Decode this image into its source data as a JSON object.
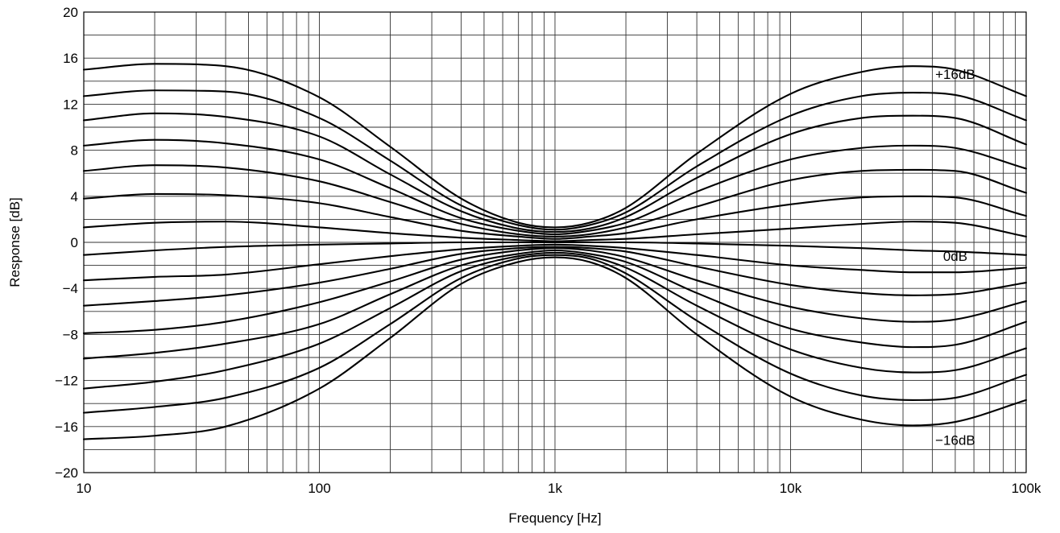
{
  "chart_data": {
    "type": "line",
    "title": "",
    "xlabel": "Frequency [Hz]",
    "ylabel": "Response [dB]",
    "xscale": "log",
    "xlim": [
      10,
      100000
    ],
    "ylim": [
      -20,
      20
    ],
    "grid": true,
    "legend": "none",
    "x_ticks": [
      {
        "value": 10,
        "label": "10"
      },
      {
        "value": 100,
        "label": "100"
      },
      {
        "value": 1000,
        "label": "1k"
      },
      {
        "value": 10000,
        "label": "10k"
      },
      {
        "value": 100000,
        "label": "100k"
      }
    ],
    "y_ticks": [
      {
        "value": 20,
        "label": "20"
      },
      {
        "value": 16,
        "label": "16"
      },
      {
        "value": 12,
        "label": "12"
      },
      {
        "value": 8,
        "label": "8"
      },
      {
        "value": 4,
        "label": "4"
      },
      {
        "value": 0,
        "label": "0"
      },
      {
        "value": -4,
        "label": "−4"
      },
      {
        "value": -8,
        "label": "−8"
      },
      {
        "value": -12,
        "label": "−12"
      },
      {
        "value": -16,
        "label": "−16"
      },
      {
        "value": -20,
        "label": "−20"
      }
    ],
    "annotations": [
      {
        "text": "+16dB",
        "x": 50000,
        "y": 14.2
      },
      {
        "text": "0dB",
        "x": 50000,
        "y": -1.6
      },
      {
        "text": "−16dB",
        "x": 50000,
        "y": -17.6
      }
    ],
    "x": [
      10,
      20,
      40,
      100,
      200,
      400,
      700,
      1000,
      1400,
      2000,
      4000,
      10000,
      20000,
      33000,
      50000,
      100000
    ],
    "series": [
      {
        "values": [
          15.0,
          15.5,
          15.3,
          12.6,
          8.3,
          3.8,
          1.7,
          1.3,
          1.7,
          3.0,
          7.7,
          12.9,
          14.8,
          15.3,
          15.0,
          12.7
        ]
      },
      {
        "values": [
          12.7,
          13.2,
          13.1,
          10.8,
          7.1,
          3.2,
          1.5,
          1.1,
          1.5,
          2.6,
          6.6,
          11.0,
          12.7,
          13.0,
          12.8,
          10.6
        ]
      },
      {
        "values": [
          10.6,
          11.2,
          10.9,
          9.2,
          5.9,
          2.7,
          1.2,
          0.9,
          1.2,
          2.2,
          5.6,
          9.4,
          10.8,
          11.0,
          10.8,
          8.5
        ]
      },
      {
        "values": [
          8.4,
          8.9,
          8.6,
          7.2,
          4.7,
          2.1,
          1.0,
          0.7,
          1.0,
          1.7,
          4.4,
          7.2,
          8.2,
          8.4,
          8.2,
          6.4
        ]
      },
      {
        "values": [
          6.2,
          6.7,
          6.5,
          5.3,
          3.5,
          1.6,
          0.7,
          0.5,
          0.7,
          1.3,
          3.1,
          5.4,
          6.2,
          6.3,
          6.2,
          4.3
        ]
      },
      {
        "values": [
          3.8,
          4.2,
          4.1,
          3.4,
          2.2,
          1.0,
          0.5,
          0.3,
          0.5,
          0.8,
          2.0,
          3.3,
          3.9,
          4.0,
          3.9,
          2.3
        ]
      },
      {
        "values": [
          1.3,
          1.7,
          1.8,
          1.3,
          0.8,
          0.4,
          0.2,
          0.1,
          0.2,
          0.3,
          0.7,
          1.2,
          1.6,
          1.8,
          1.7,
          0.5
        ]
      },
      {
        "values": [
          -1.1,
          -0.7,
          -0.4,
          -0.2,
          -0.1,
          0.0,
          0.0,
          0.0,
          0.0,
          0.0,
          -0.1,
          -0.3,
          -0.5,
          -0.7,
          -0.8,
          -1.1
        ]
      },
      {
        "values": [
          -3.3,
          -3.0,
          -2.8,
          -1.9,
          -1.2,
          -0.6,
          -0.3,
          -0.2,
          -0.3,
          -0.5,
          -1.1,
          -2.0,
          -2.4,
          -2.6,
          -2.6,
          -2.2
        ]
      },
      {
        "values": [
          -5.5,
          -5.1,
          -4.6,
          -3.5,
          -2.3,
          -1.0,
          -0.5,
          -0.4,
          -0.5,
          -0.8,
          -2.1,
          -3.7,
          -4.4,
          -4.6,
          -4.5,
          -3.5
        ]
      },
      {
        "values": [
          -7.9,
          -7.6,
          -6.9,
          -5.2,
          -3.4,
          -1.5,
          -0.7,
          -0.5,
          -0.7,
          -1.3,
          -3.3,
          -5.6,
          -6.6,
          -6.9,
          -6.7,
          -5.1
        ]
      },
      {
        "values": [
          -10.1,
          -9.6,
          -8.8,
          -7.1,
          -4.5,
          -2.0,
          -1.0,
          -0.7,
          -1.0,
          -1.7,
          -4.4,
          -7.5,
          -8.7,
          -9.1,
          -8.9,
          -6.9
        ]
      },
      {
        "values": [
          -12.7,
          -12.1,
          -11.1,
          -8.8,
          -5.7,
          -2.5,
          -1.2,
          -0.9,
          -1.2,
          -2.2,
          -5.5,
          -9.3,
          -10.9,
          -11.3,
          -11.1,
          -9.2
        ]
      },
      {
        "values": [
          -14.8,
          -14.3,
          -13.5,
          -10.9,
          -7.1,
          -3.1,
          -1.4,
          -1.1,
          -1.4,
          -2.7,
          -6.8,
          -11.4,
          -13.3,
          -13.7,
          -13.5,
          -11.5
        ]
      },
      {
        "values": [
          -17.1,
          -16.8,
          -16.0,
          -12.7,
          -8.3,
          -3.6,
          -1.7,
          -1.3,
          -1.7,
          -3.1,
          -8.0,
          -13.4,
          -15.4,
          -15.9,
          -15.6,
          -13.7
        ]
      }
    ]
  }
}
